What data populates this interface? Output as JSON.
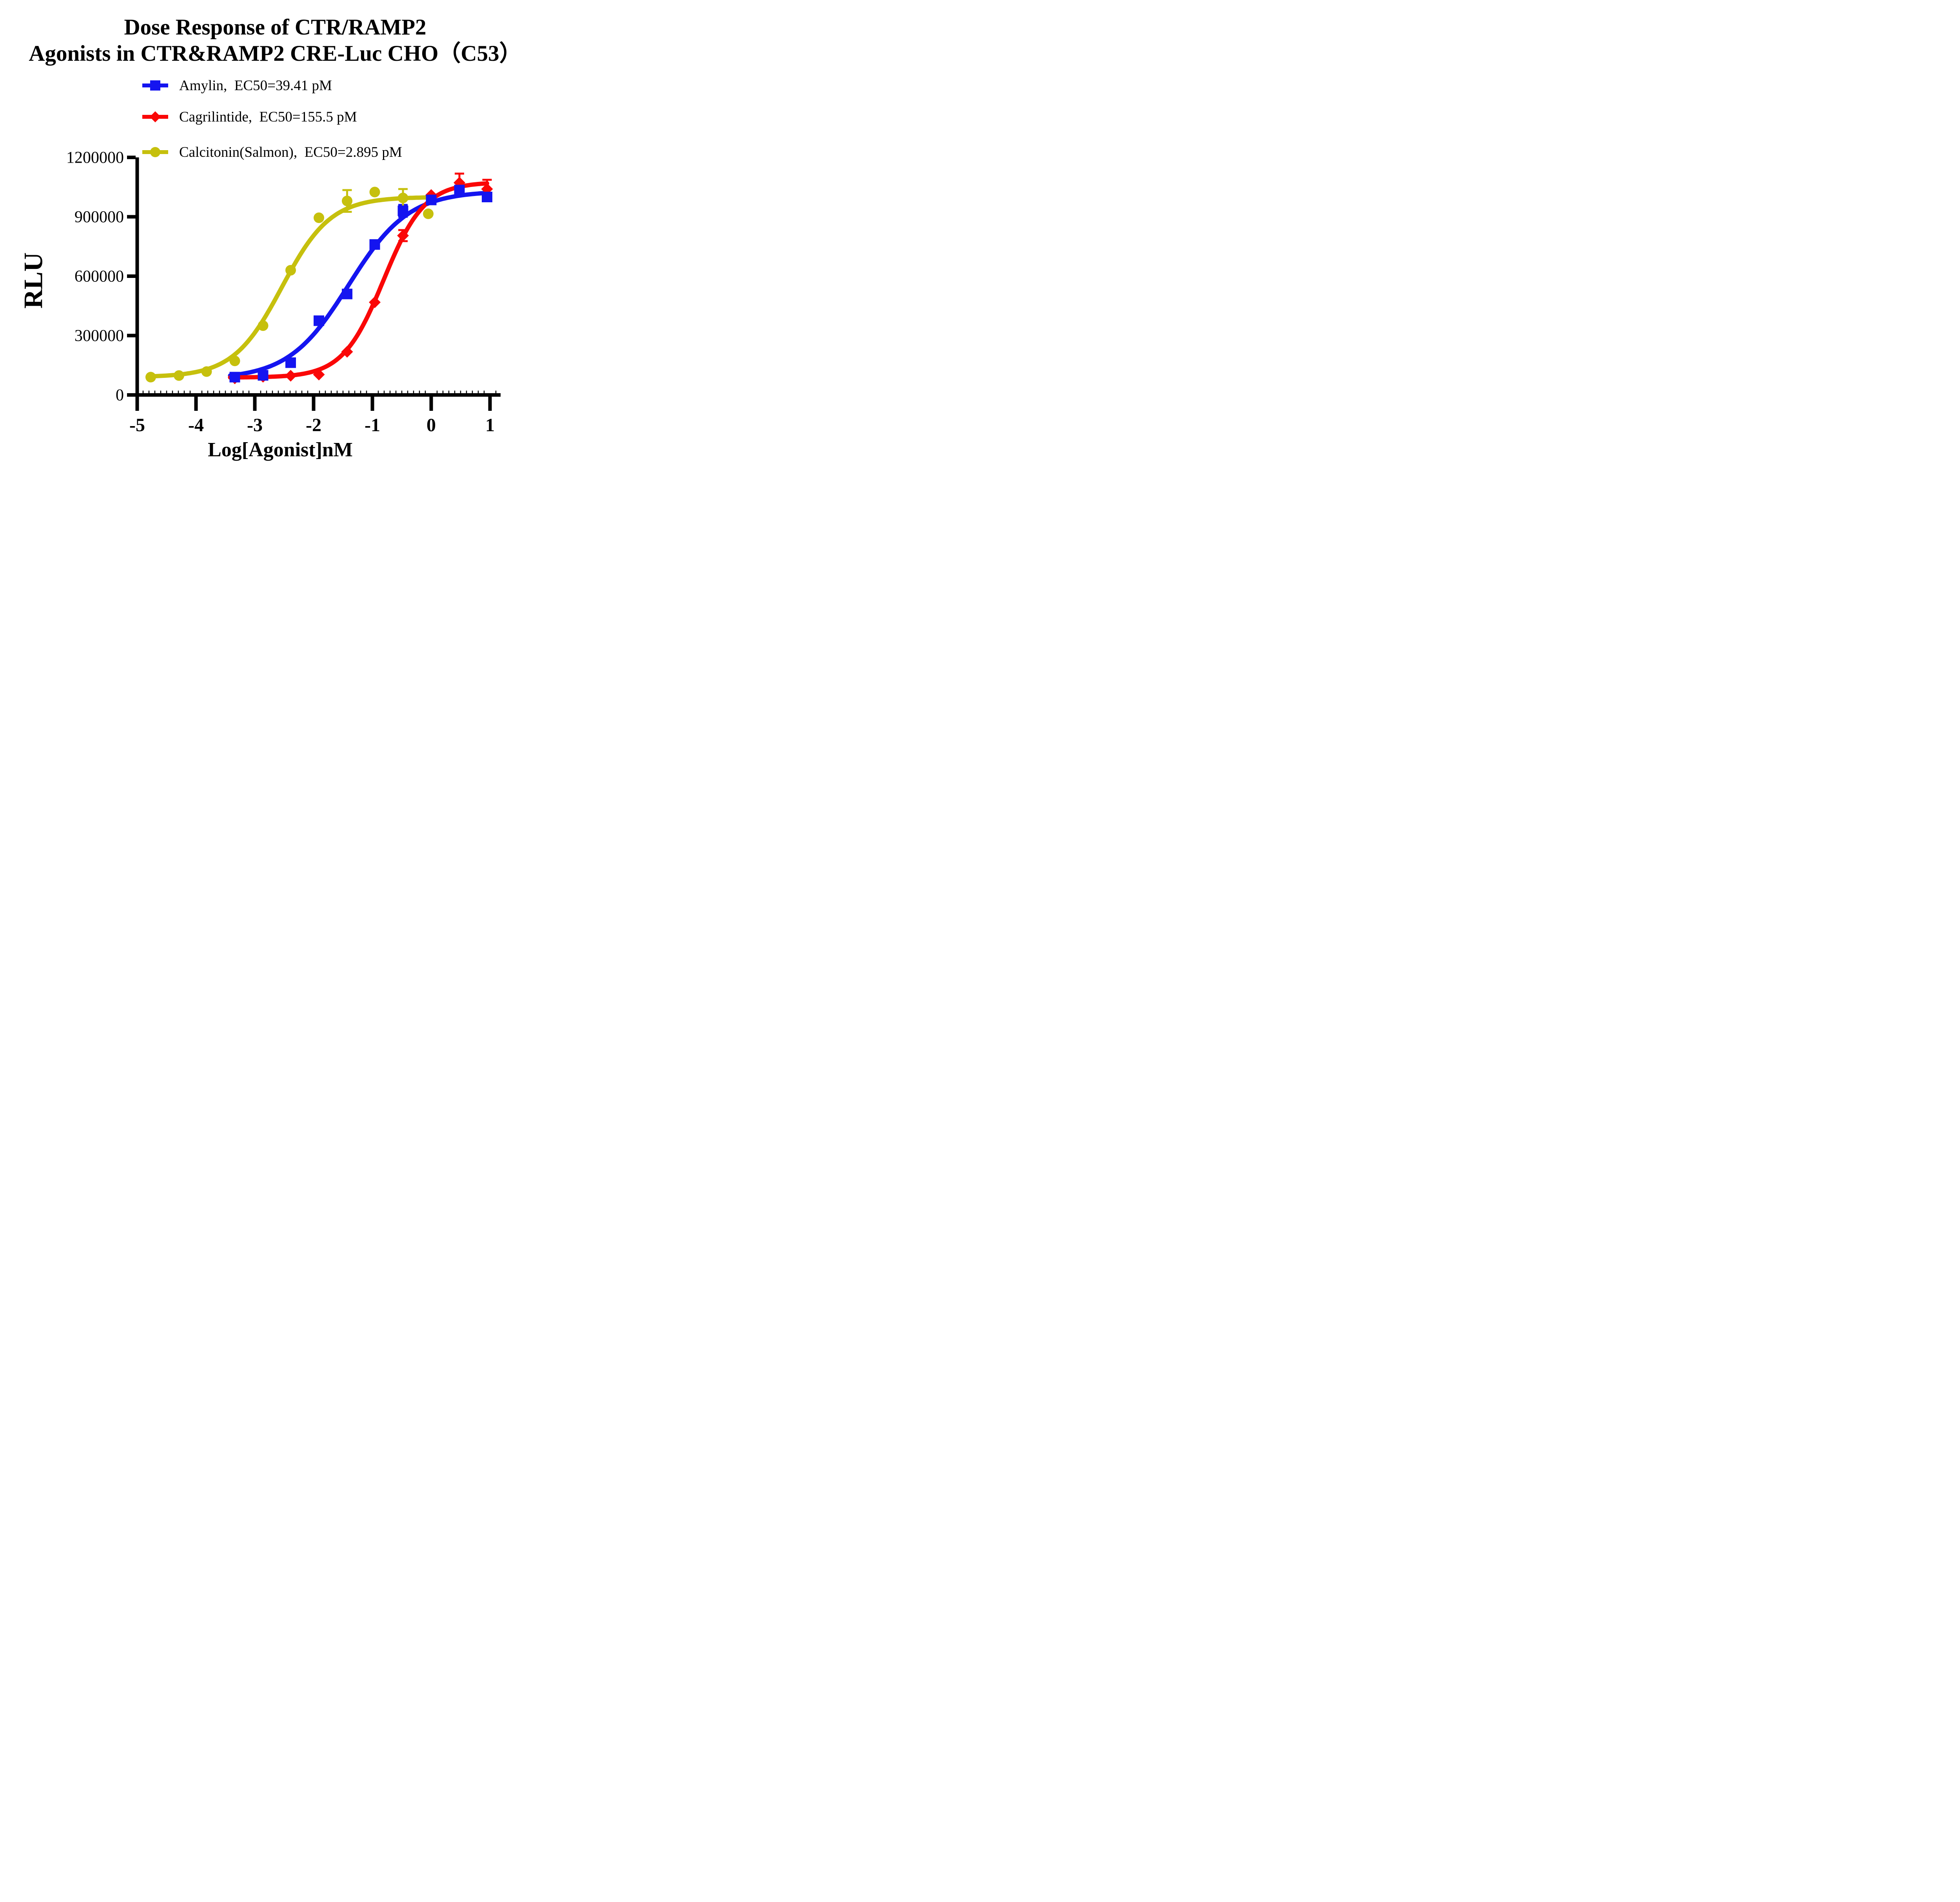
{
  "title": {
    "line1": "Dose Response of CTR/RAMP2",
    "line2": "Agonists in CTR&RAMP2 CRE-Luc CHO（C53）"
  },
  "legend": [
    {
      "label": "Amylin,  EC50=39.41 pM",
      "marker": "square",
      "color": "#1414f0"
    },
    {
      "label": "Cagrilintide,  EC50=155.5 pM",
      "marker": "diamond",
      "color": "#fa0707"
    },
    {
      "label": "Calcitonin(Salmon),  EC50=2.895 pM",
      "marker": "circle",
      "color": "#c6c00d"
    }
  ],
  "chart_data": {
    "type": "scatter",
    "title": "Dose Response of CTR/RAMP2 Agonists in CTR&RAMP2 CRE-Luc CHO（C53）",
    "xlabel": "Log[Agonist]nM",
    "ylabel": "RLU",
    "xlim": [
      -5,
      1.18
    ],
    "ylim": [
      0,
      1200000
    ],
    "x_ticks": [
      -5,
      -4,
      -3,
      -2,
      -1,
      0,
      1
    ],
    "x_minor_tick_step": 0.1,
    "y_ticks": [
      0,
      300000,
      600000,
      900000,
      1200000
    ],
    "grid": false,
    "legend_position": "top-left",
    "axis_color": "#000000",
    "series": [
      {
        "name": "Amylin",
        "ec50_label": "EC50=39.41 pM",
        "ec50_pм": 39.41,
        "color": "#1414f0",
        "marker": "square",
        "x": [
          -3.34,
          -2.86,
          -2.39,
          -1.91,
          -1.43,
          -0.96,
          -0.48,
          0.0,
          0.48,
          0.95
        ],
        "y": [
          90000,
          99000,
          163000,
          375000,
          510000,
          760000,
          930000,
          985000,
          1035000,
          1000000
        ],
        "err": [
          0,
          0,
          0,
          0,
          0,
          0,
          30000,
          0,
          0,
          0
        ],
        "fit": {
          "bottom": 80000,
          "top": 1030000,
          "log_ec50_nM": -1.4044,
          "hill": 0.85,
          "x_start": -3.42,
          "x_end": 0.95
        }
      },
      {
        "name": "Cagrilintide",
        "ec50_label": "EC50=155.5 pM",
        "ec50_pм": 155.5,
        "color": "#fa0707",
        "marker": "diamond",
        "x": [
          -3.34,
          -2.86,
          -2.39,
          -1.91,
          -1.43,
          -0.96,
          -0.48,
          0.0,
          0.48,
          0.95
        ],
        "y": [
          84000,
          92000,
          97000,
          103000,
          218000,
          468000,
          805000,
          1010000,
          1072000,
          1040000
        ],
        "err": [
          0,
          0,
          0,
          0,
          0,
          0,
          28000,
          0,
          46000,
          47000
        ],
        "fit": {
          "bottom": 88000,
          "top": 1075000,
          "log_ec50_nM": -0.8082,
          "hill": 1.25,
          "x_start": -3.42,
          "x_end": 0.95
        }
      },
      {
        "name": "Calcitonin(Salmon)",
        "ec50_label": "EC50=2.895 pM",
        "ec50_pм": 2.895,
        "color": "#c6c00d",
        "marker": "circle",
        "x": [
          -4.77,
          -4.29,
          -3.82,
          -3.34,
          -2.86,
          -2.39,
          -1.91,
          -1.43,
          -0.96,
          -0.48,
          -0.05
        ],
        "y": [
          90000,
          98000,
          118000,
          172000,
          350000,
          630000,
          895000,
          980000,
          1025000,
          995000,
          915000
        ],
        "err": [
          0,
          0,
          0,
          0,
          0,
          0,
          0,
          55000,
          0,
          45000,
          0
        ],
        "fit": {
          "bottom": 90000,
          "top": 1000000,
          "log_ec50_nM": -2.5384,
          "hill": 1.05,
          "x_start": -4.82,
          "x_end": -0.05
        }
      }
    ]
  }
}
